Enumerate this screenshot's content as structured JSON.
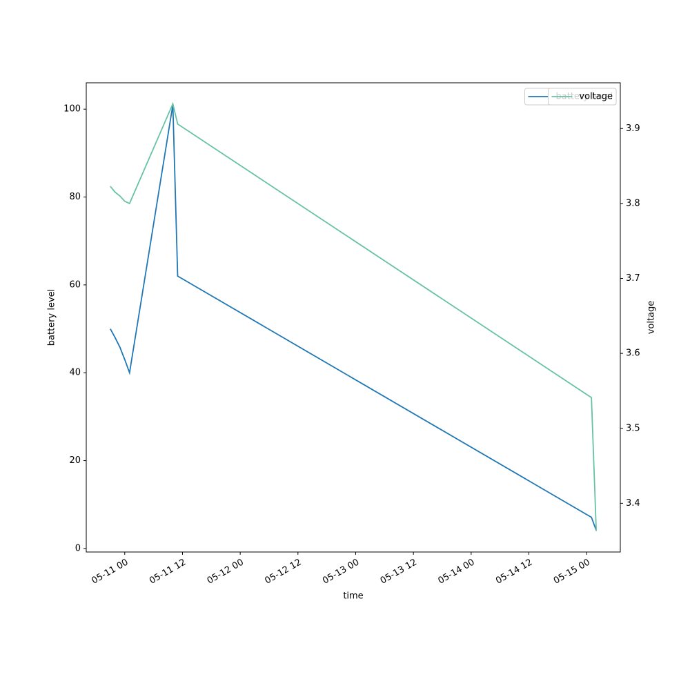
{
  "chart_data": {
    "type": "line",
    "x_label": "time",
    "y_label": "battery level",
    "y2_label": "voltage",
    "x": [
      "05-10 21",
      "05-10 22",
      "05-10 23",
      "05-11 00",
      "05-11 01",
      "05-11 10",
      "05-11 11",
      "05-15 01",
      "05-15 02"
    ],
    "series": [
      {
        "name": "battery level",
        "color": "#1f77b4",
        "values": [
          50,
          48,
          45.8,
          43,
          40,
          101,
          62,
          7.1,
          4.1
        ]
      },
      {
        "name": "voltage",
        "color": "#66c2a5",
        "axis": "y2",
        "values": [
          3.823,
          3.815,
          3.81,
          3.803,
          3.8,
          3.933,
          3.906,
          3.541,
          3.363
        ]
      }
    ],
    "xlim": [
      "05-10 16",
      "05-15 07"
    ],
    "xticks": [
      "05-11 00",
      "05-11 12",
      "05-12 00",
      "05-12 12",
      "05-13 00",
      "05-13 12",
      "05-14 00",
      "05-14 12",
      "05-15 00"
    ],
    "ylim": [
      -0.8,
      106
    ],
    "yticks": [
      0,
      20,
      40,
      60,
      80,
      100
    ],
    "y2lim": [
      3.335,
      3.961
    ],
    "y2ticks": [
      3.4,
      3.5,
      3.6,
      3.7,
      3.8,
      3.9
    ],
    "legend": "upper right"
  }
}
